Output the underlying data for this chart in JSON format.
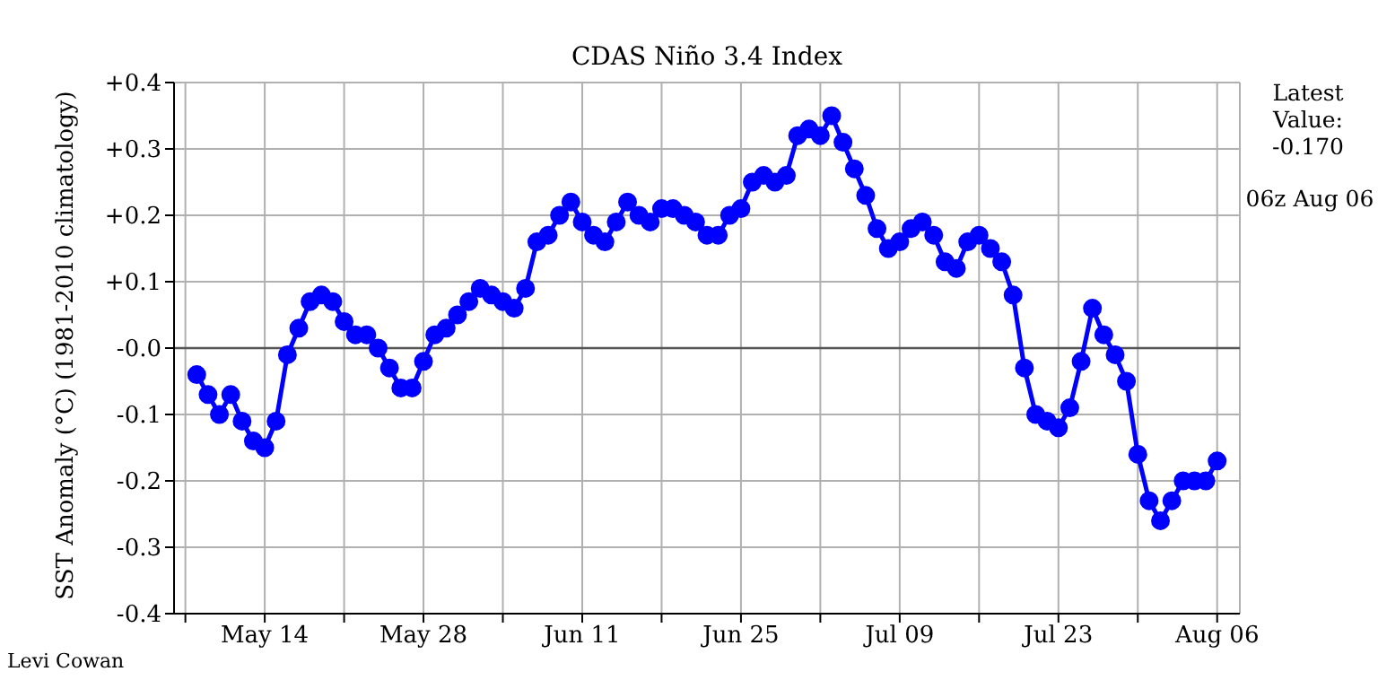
{
  "chart_data": {
    "type": "line",
    "title": "CDAS Niño 3.4 Index",
    "ylabel": "SST Anomaly (°C) (1981-2010 climatology)",
    "annotations": [
      "Latest Value: -0.170",
      "06z Aug 06",
      "Levi Cowan"
    ],
    "x": [
      "--05-08",
      "--05-09",
      "--05-10",
      "--05-11",
      "--05-12",
      "--05-13",
      "--05-14",
      "--05-15",
      "--05-16",
      "--05-17",
      "--05-18",
      "--05-19",
      "--05-20",
      "--05-21",
      "--05-22",
      "--05-23",
      "--05-24",
      "--05-25",
      "--05-26",
      "--05-27",
      "--05-28",
      "--05-29",
      "--05-30",
      "--05-31",
      "--06-01",
      "--06-02",
      "--06-03",
      "--06-04",
      "--06-05",
      "--06-06",
      "--06-07",
      "--06-08",
      "--06-09",
      "--06-10",
      "--06-11",
      "--06-12",
      "--06-13",
      "--06-14",
      "--06-15",
      "--06-16",
      "--06-17",
      "--06-18",
      "--06-19",
      "--06-20",
      "--06-21",
      "--06-22",
      "--06-23",
      "--06-24",
      "--06-25",
      "--06-26",
      "--06-27",
      "--06-28",
      "--06-29",
      "--06-30",
      "--07-01",
      "--07-02",
      "--07-03",
      "--07-04",
      "--07-05",
      "--07-06",
      "--07-07",
      "--07-08",
      "--07-09",
      "--07-10",
      "--07-11",
      "--07-12",
      "--07-13",
      "--07-14",
      "--07-15",
      "--07-16",
      "--07-17",
      "--07-18",
      "--07-19",
      "--07-20",
      "--07-21",
      "--07-22",
      "--07-23",
      "--07-24",
      "--07-25",
      "--07-26",
      "--07-27",
      "--07-28",
      "--07-29",
      "--07-30",
      "--07-31",
      "--08-01",
      "--08-02",
      "--08-03",
      "--08-04",
      "--08-05",
      "--08-06"
    ],
    "series": [
      {
        "color": "#0000ff",
        "values": [
          -0.04,
          -0.07,
          -0.1,
          -0.07,
          -0.11,
          -0.14,
          -0.15,
          -0.11,
          -0.01,
          0.03,
          0.07,
          0.08,
          0.07,
          0.04,
          0.02,
          0.02,
          0.0,
          -0.03,
          -0.06,
          -0.06,
          -0.02,
          0.02,
          0.03,
          0.05,
          0.07,
          0.09,
          0.08,
          0.07,
          0.06,
          0.09,
          0.16,
          0.17,
          0.2,
          0.22,
          0.19,
          0.17,
          0.16,
          0.19,
          0.22,
          0.2,
          0.19,
          0.21,
          0.21,
          0.2,
          0.19,
          0.17,
          0.17,
          0.2,
          0.21,
          0.25,
          0.26,
          0.25,
          0.26,
          0.32,
          0.33,
          0.32,
          0.35,
          0.31,
          0.27,
          0.23,
          0.18,
          0.15,
          0.16,
          0.18,
          0.19,
          0.17,
          0.13,
          0.12,
          0.16,
          0.17,
          0.15,
          0.13,
          0.08,
          -0.03,
          -0.1,
          -0.11,
          -0.12,
          -0.09,
          -0.02,
          0.06,
          0.02,
          -0.01,
          -0.05,
          -0.16,
          -0.23,
          -0.26,
          -0.23,
          -0.2,
          -0.2,
          -0.2,
          -0.17
        ]
      }
    ],
    "xlim": [
      "--05-06",
      "--08-08"
    ],
    "xticks": [
      {
        "value": "--05-07",
        "label": null
      },
      {
        "value": "--05-14",
        "label": "May 14"
      },
      {
        "value": "--05-21",
        "label": null
      },
      {
        "value": "--05-28",
        "label": "May 28"
      },
      {
        "value": "--06-04",
        "label": null
      },
      {
        "value": "--06-11",
        "label": "Jun 11"
      },
      {
        "value": "--06-18",
        "label": null
      },
      {
        "value": "--06-25",
        "label": "Jun 25"
      },
      {
        "value": "--07-02",
        "label": null
      },
      {
        "value": "--07-09",
        "label": "Jul 09"
      },
      {
        "value": "--07-16",
        "label": null
      },
      {
        "value": "--07-23",
        "label": "Jul 23"
      },
      {
        "value": "--07-30",
        "label": null
      },
      {
        "value": "--08-06",
        "label": "Aug 06"
      }
    ],
    "ylim": [
      -0.4,
      0.4
    ],
    "yticks": [
      {
        "value": -0.4,
        "label": "-0.4"
      },
      {
        "value": -0.3,
        "label": "-0.3"
      },
      {
        "value": -0.2,
        "label": "-0.2"
      },
      {
        "value": -0.1,
        "label": "-0.1"
      },
      {
        "value": 0,
        "label": "-0.0"
      },
      {
        "value": 0.1,
        "label": "+0.1"
      },
      {
        "value": 0.2,
        "label": "+0.2"
      },
      {
        "value": 0.3,
        "label": "+0.3"
      },
      {
        "value": 0.4,
        "label": "+0.4"
      }
    ],
    "ref_lines": [
      {
        "axis": "y",
        "value": 0,
        "color": "#555555"
      }
    ],
    "grid": true,
    "marker": "circle",
    "line_style": "solid"
  }
}
